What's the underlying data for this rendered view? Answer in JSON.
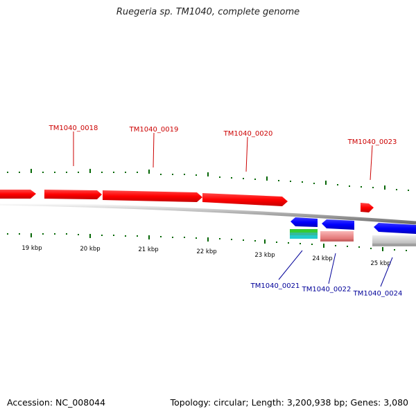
{
  "title": "Ruegeria sp. TM1040, complete genome",
  "footer": {
    "accession": "Accession: NC_008044",
    "summary": "Topology: circular; Length: 3,200,938 bp; Genes: 3,080"
  },
  "scale_labels": [
    "19 kbp",
    "20 kbp",
    "21 kbp",
    "22 kbp",
    "23 kbp",
    "24 kbp",
    "25 kbp"
  ],
  "genes_forward": [
    {
      "id": "",
      "color": "#ff0000"
    },
    {
      "id": "TM1040_0018",
      "color": "#ff0000"
    },
    {
      "id": "TM1040_0019",
      "color": "#ff0000"
    },
    {
      "id": "TM1040_0020",
      "color": "#ff0000"
    },
    {
      "id": "TM1040_0023",
      "color": "#ff0000"
    }
  ],
  "genes_reverse": [
    {
      "id": "TM1040_0021",
      "color": "#0000ff"
    },
    {
      "id": "TM1040_0022",
      "color": "#0000ff"
    },
    {
      "id": "TM1040_0024",
      "color": "#0000ff"
    }
  ],
  "colors": {
    "forward_label": "#cc0000",
    "reverse_label": "#000099",
    "tick": "#006600",
    "backbone": "#888888"
  }
}
